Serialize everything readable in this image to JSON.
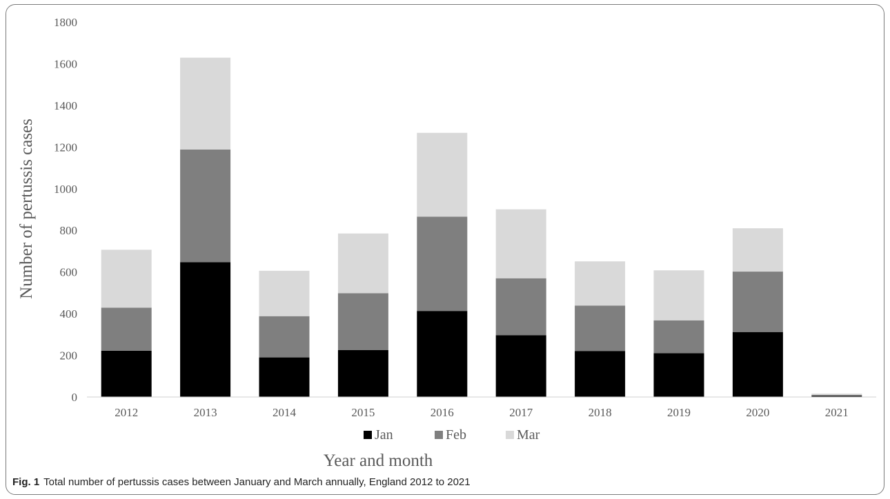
{
  "caption": {
    "label": "Fig. 1",
    "text": "Total number of pertussis cases between January and March annually, England 2012 to 2021"
  },
  "chart_data": {
    "type": "bar",
    "stacked": true,
    "categories": [
      "2012",
      "2013",
      "2014",
      "2015",
      "2016",
      "2017",
      "2018",
      "2019",
      "2020",
      "2021"
    ],
    "series": [
      {
        "name": "Jan",
        "color": "#000000",
        "values": [
          222,
          647,
          190,
          225,
          413,
          297,
          221,
          210,
          312,
          5
        ]
      },
      {
        "name": "Feb",
        "color": "#7f7f7f",
        "values": [
          207,
          541,
          198,
          273,
          453,
          273,
          218,
          158,
          290,
          5
        ]
      },
      {
        "name": "Mar",
        "color": "#d9d9d9",
        "values": [
          278,
          441,
          218,
          287,
          402,
          331,
          212,
          240,
          208,
          6
        ]
      }
    ],
    "xlabel": "Year and month",
    "ylabel": "Number of pertussis cases",
    "ylim": [
      0,
      1800
    ],
    "yticks": [
      "0",
      "200",
      "400",
      "600",
      "800",
      "1000",
      "1200",
      "1400",
      "1600",
      "1800"
    ],
    "grid": false,
    "legend": "bottom"
  }
}
